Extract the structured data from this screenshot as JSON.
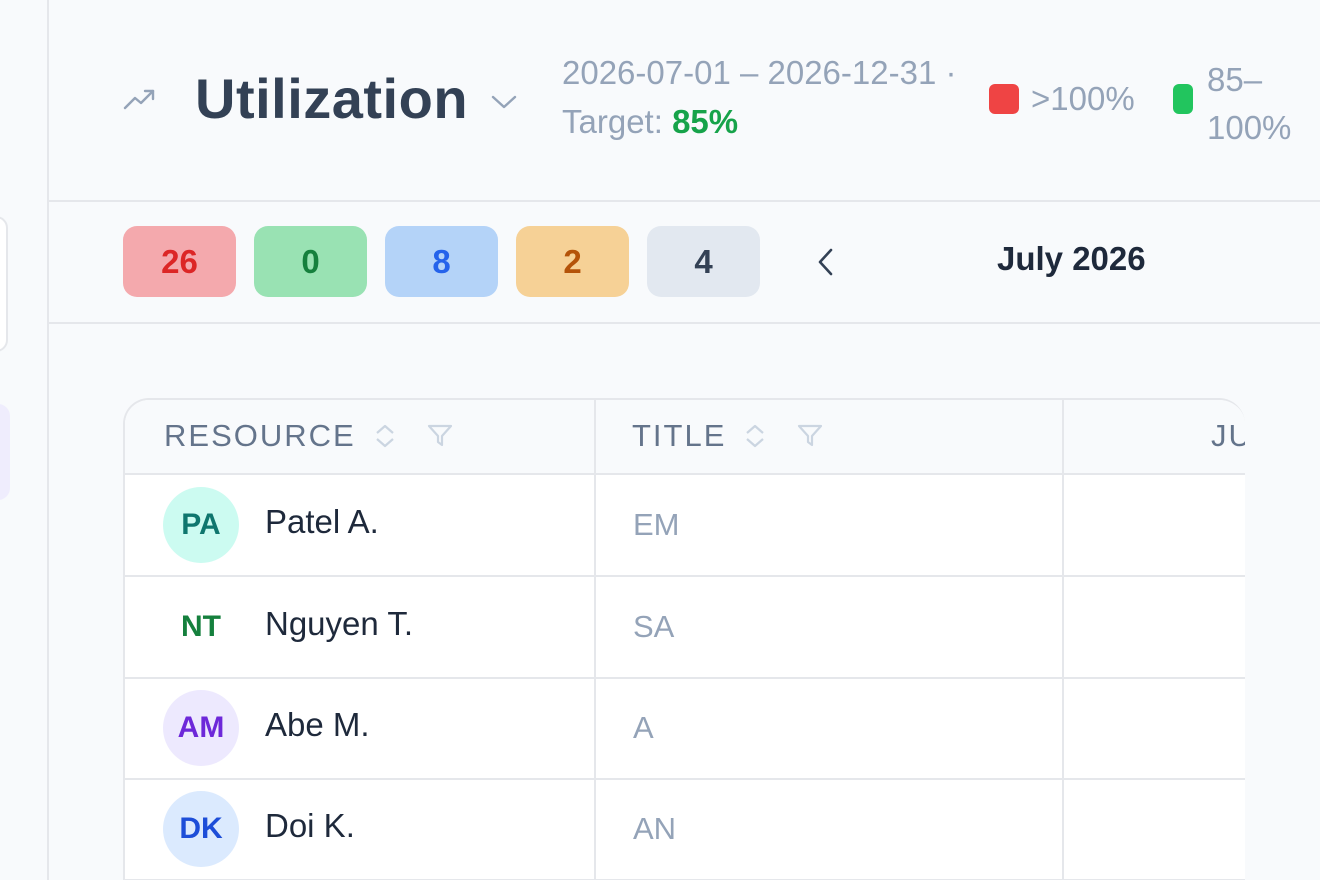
{
  "header": {
    "title": "Utilization",
    "date_range": "2026-07-01 – 2026-12-31 ·",
    "target_label": "Target:",
    "target_value": "85%",
    "legend": [
      {
        "label": ">100%",
        "color": "#ef4444"
      },
      {
        "label": "85–100%",
        "color": "#22c55e"
      }
    ]
  },
  "toolbar": {
    "counts": [
      {
        "value": "26",
        "status": "over",
        "color": "#dc2626"
      },
      {
        "value": "0",
        "status": "target",
        "color": "#15803d"
      },
      {
        "value": "8",
        "status": "info",
        "color": "#2563eb"
      },
      {
        "value": "2",
        "status": "warning",
        "color": "#b45309"
      },
      {
        "value": "4",
        "status": "neutral",
        "color": "#334155"
      }
    ],
    "month": "July 2026"
  },
  "table": {
    "columns": [
      "RESOURCE",
      "TITLE",
      "JU"
    ],
    "rows": [
      {
        "initials": "PA",
        "name": "Patel A.",
        "title": "EM"
      },
      {
        "initials": "NT",
        "name": "Nguyen T.",
        "title": "SA"
      },
      {
        "initials": "AM",
        "name": "Abe M.",
        "title": "A"
      },
      {
        "initials": "DK",
        "name": "Doi K.",
        "title": "AN"
      }
    ]
  },
  "icons": {
    "trend": "trending-up-icon",
    "title_dropdown": "chevron-down-icon",
    "prev": "chevron-left-icon",
    "sort": "sort-icon",
    "filter": "filter-icon"
  }
}
